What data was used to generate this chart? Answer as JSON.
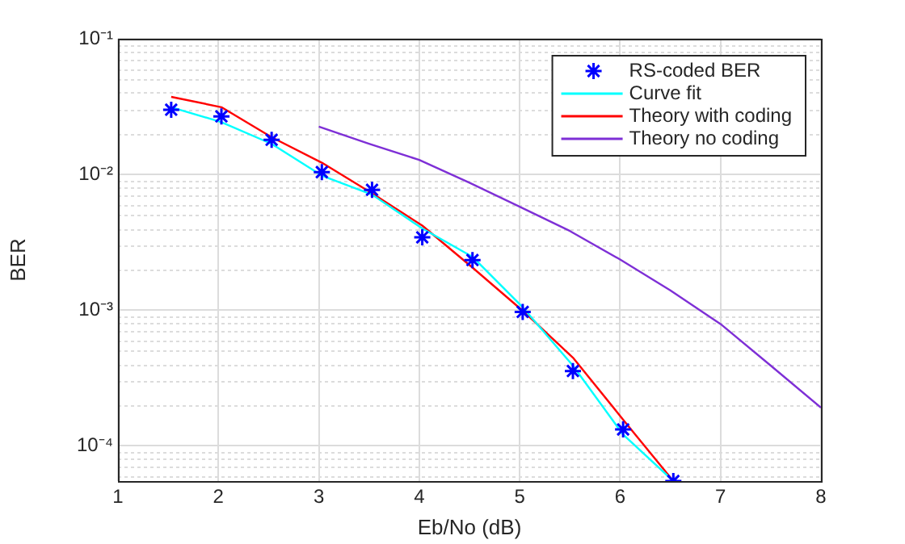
{
  "chart_data": {
    "type": "line",
    "xlabel": "Eb/No (dB)",
    "ylabel": "BER",
    "log": "y",
    "grid": true,
    "legend": "top right",
    "xlim": [
      1,
      8
    ],
    "xticks": [
      1,
      2,
      3,
      4,
      5,
      6,
      7,
      8
    ],
    "ylim": [
      5.5e-05,
      0.1
    ],
    "yticks": [
      {
        "value": 0.0001,
        "label": "10⁻⁴"
      },
      {
        "value": 0.001,
        "label": "10⁻³"
      },
      {
        "value": 0.01,
        "label": "10⁻²"
      },
      {
        "value": 0.1,
        "label": "10⁻¹"
      }
    ],
    "series": [
      {
        "name": "RS-coded BER",
        "type": "scatter",
        "marker": "cross",
        "color": "#0000ff",
        "x": [
          1.53,
          2.03,
          2.53,
          3.03,
          3.53,
          4.03,
          4.53,
          5.03,
          5.53,
          6.03,
          6.53
        ],
        "values": [
          0.03,
          0.0268,
          0.018,
          0.0104,
          0.0077,
          0.00344,
          0.00234,
          0.00097,
          0.000356,
          0.000132,
          5.5e-05
        ]
      },
      {
        "name": "Curve fit",
        "marker": "none",
        "line_style": "solid",
        "color": "#00ffff",
        "x": [
          1.53,
          2.03,
          2.53,
          3.03,
          3.53,
          4.03,
          4.53,
          5.03,
          5.53,
          6.03,
          6.53
        ],
        "values": [
          0.0313,
          0.0243,
          0.0168,
          0.0098,
          0.0071,
          0.004,
          0.00247,
          0.00105,
          0.00039,
          0.000121,
          5.5e-05
        ]
      },
      {
        "name": "Theory with coding",
        "marker": "none",
        "line_style": "solid",
        "color": "#ff0000",
        "x": [
          1.53,
          2.03,
          2.53,
          3.03,
          3.53,
          4.03,
          4.53,
          5.03,
          5.53,
          6.03,
          6.53
        ],
        "values": [
          0.0373,
          0.0313,
          0.0188,
          0.0122,
          0.00726,
          0.0042,
          0.00206,
          0.00099,
          0.000447,
          0.000156,
          5.5e-05
        ]
      },
      {
        "name": "Theory no coding",
        "marker": "none",
        "line_style": "solid",
        "color": "#7e2fd6",
        "x": [
          3,
          3.5,
          4,
          4.5,
          5,
          5.5,
          6,
          6.5,
          7,
          7.5,
          8
        ],
        "values": [
          0.0225,
          0.0168,
          0.0128,
          0.0087,
          0.00578,
          0.00383,
          0.00236,
          0.0014,
          0.00079,
          0.00039,
          0.000191
        ]
      }
    ]
  }
}
